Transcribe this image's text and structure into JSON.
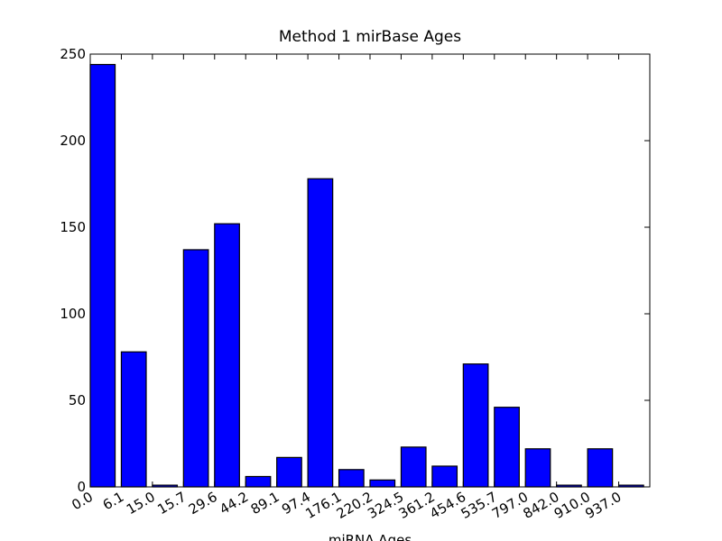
{
  "chart_data": {
    "type": "bar",
    "title": "Method 1 mirBase Ages",
    "x_label": "miRNA Ages",
    "categories": [
      "0.0",
      "6.1",
      "15.0",
      "15.7",
      "29.6",
      "44.2",
      "89.1",
      "97.4",
      "176.1",
      "220.2",
      "324.5",
      "361.2",
      "454.6",
      "535.7",
      "797.0",
      "842.0",
      "910.0",
      "937.0"
    ],
    "values": [
      244,
      78,
      1,
      137,
      152,
      6,
      17,
      178,
      10,
      4,
      23,
      12,
      71,
      46,
      22,
      1,
      22,
      1
    ],
    "color": "#0000ff",
    "ylim": [
      0,
      250
    ],
    "yticks": [
      0,
      50,
      100,
      150,
      200,
      250
    ],
    "grid": false
  }
}
